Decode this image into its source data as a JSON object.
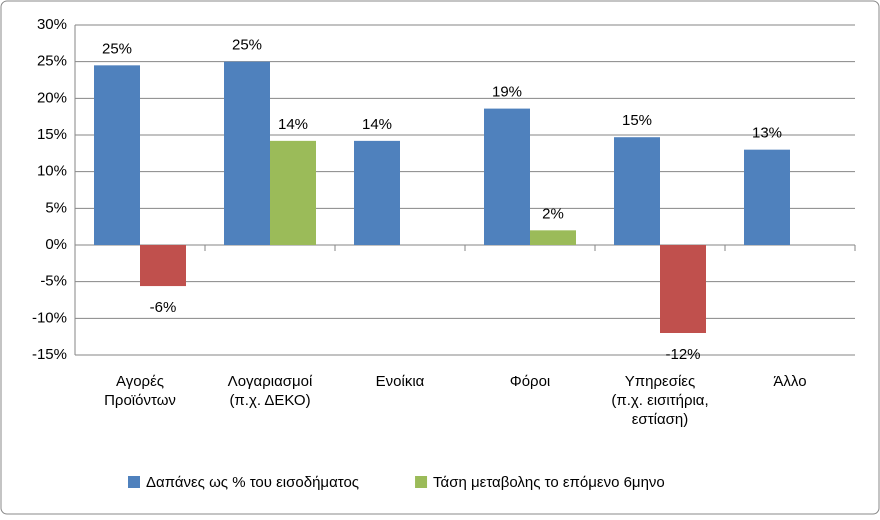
{
  "chart_data": {
    "type": "bar",
    "categories": [
      "Αγορές\nΠροϊόντων",
      "Λογαριασμοί\n(π.χ. ΔΕΚΟ)",
      "Ενοίκια",
      "Φόροι",
      "Υπηρεσίες\n(π.χ. εισιτήρια,\nεστίαση)",
      "Άλλο"
    ],
    "series": [
      {
        "name": "Δαπάνες ως % του εισοδήματος",
        "color": "#4f81bd",
        "values": [
          24.5,
          25,
          14.2,
          18.6,
          14.7,
          13
        ],
        "value_labels": [
          "25%",
          "25%",
          "14%",
          "19%",
          "15%",
          "13%"
        ]
      },
      {
        "name": "Τάση μεταβολης το επόμενο 6μηνο",
        "color": "#9bbb59",
        "negative_color": "#c0504d",
        "values": [
          -5.6,
          14.2,
          null,
          2,
          -12,
          null
        ],
        "value_labels": [
          "-6%",
          "14%",
          null,
          "2%",
          "-12%",
          null
        ]
      }
    ],
    "ylim": [
      -15,
      30
    ],
    "yticks": [
      {
        "value": -15,
        "label": "-15%"
      },
      {
        "value": -10,
        "label": "-10%"
      },
      {
        "value": -5,
        "label": "-5%"
      },
      {
        "value": 0,
        "label": "0%"
      },
      {
        "value": 5,
        "label": "5%"
      },
      {
        "value": 10,
        "label": "10%"
      },
      {
        "value": 15,
        "label": "15%"
      },
      {
        "value": 20,
        "label": "20%"
      },
      {
        "value": 25,
        "label": "25%"
      },
      {
        "value": 30,
        "label": "30%"
      }
    ],
    "grid": true,
    "legend": "bottom"
  }
}
